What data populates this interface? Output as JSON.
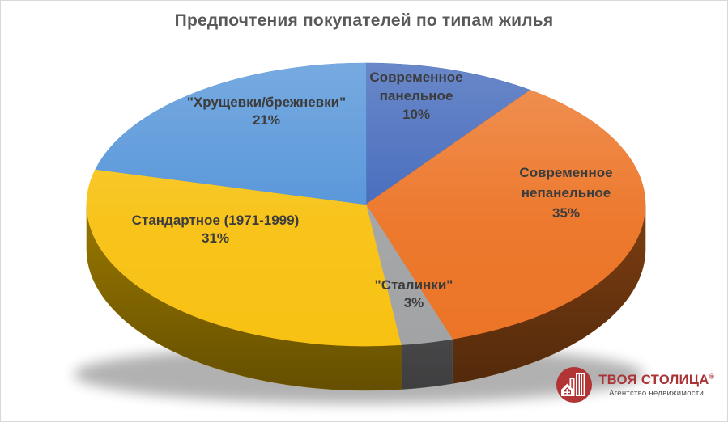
{
  "title": "Предпочтения покупателей по типам жилья",
  "chart_data": {
    "type": "pie",
    "style": "3d-pie",
    "title": "Предпочтения покупателей по типам жилья",
    "unit": "%",
    "start_angle_deg": 0,
    "direction": "clockwise",
    "legend": "none",
    "labels_color": "#3c3c3c",
    "slices": [
      {
        "label": "Современное панельное",
        "value": 10,
        "pct_label": "10%",
        "color": "#3f66ba",
        "side_color": "#2e4c8f"
      },
      {
        "label": "Современное непанельное",
        "value": 35,
        "pct_label": "35%",
        "color": "#ec7426",
        "side_color": "#743a10"
      },
      {
        "label": "\"Сталинки\"",
        "value": 3,
        "pct_label": "3%",
        "color": "#a2a3a5",
        "side_color": "#58585a"
      },
      {
        "label": "Стандартное (1971-1999)",
        "value": 31,
        "pct_label": "31%",
        "color": "#f8c213",
        "side_color": "#8f7000"
      },
      {
        "label": "\"Хрущевки/брежневки\"",
        "value": 21,
        "pct_label": "21%",
        "color": "#5192d8",
        "side_color": "#386ea8"
      }
    ]
  },
  "logo": {
    "name": "ТВОЯ СТОЛИЦА",
    "registered_mark": "®",
    "tagline": "Агентство недвижимости",
    "brand_color": "#b13534",
    "icon": "buildings-icon"
  }
}
